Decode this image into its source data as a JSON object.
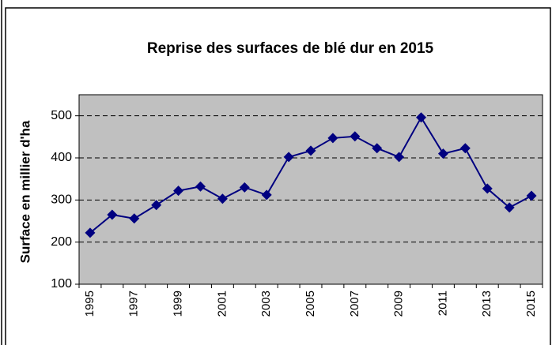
{
  "chart_data": {
    "type": "line",
    "title": "Reprise des surfaces de blé dur en 2015",
    "y_label": "Surface en millier d'ha",
    "categories": [
      "1995",
      null,
      "1997",
      null,
      "1999",
      null,
      "2001",
      null,
      "2003",
      null,
      "2005",
      null,
      "2007",
      null,
      "2009",
      null,
      "2011",
      null,
      "2013",
      null,
      "2015"
    ],
    "series": [
      {
        "name": "Surface",
        "color": "#000080",
        "values": [
          222,
          265,
          256,
          288,
          322,
          332,
          303,
          330,
          312,
          402,
          417,
          447,
          451,
          423,
          402,
          496,
          410,
          423,
          327,
          282,
          310
        ]
      }
    ],
    "ylim": [
      100,
      550
    ],
    "yticks": [
      100,
      200,
      300,
      400,
      500
    ],
    "grid": true
  }
}
